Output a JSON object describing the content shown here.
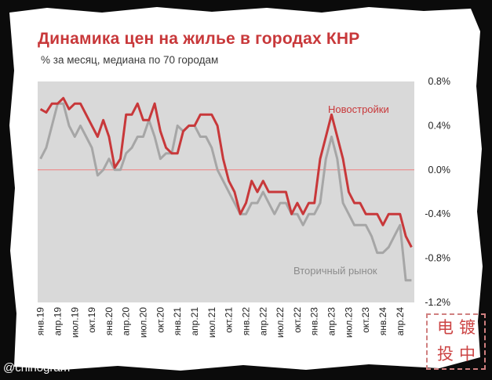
{
  "title": "Динамика цен на жилье в городах КНР",
  "subtitle": "% за месяц, медиана по 70 городам",
  "watermark": "@chinogram",
  "stamp": [
    "电",
    "镀",
    "投",
    "中"
  ],
  "colors": {
    "new": "#c8383a",
    "secondary": "#a6a6a6",
    "zero_line": "#f08080",
    "plot_bg": "#d9d9d9",
    "title": "#c8383a"
  },
  "chart_data": {
    "type": "line",
    "title": "Динамика цен на жилье в городах КНР",
    "subtitle": "% за месяц, медиана по 70 городам",
    "xlabel": "",
    "ylabel": "",
    "ylim": [
      -1.2,
      0.8
    ],
    "yticks": [
      0.8,
      0.4,
      0.0,
      -0.4,
      -0.8,
      -1.2
    ],
    "ytick_labels": [
      "0.8%",
      "0.4%",
      "0.0%",
      "-0.4%",
      "-0.8%",
      "-1.2%"
    ],
    "y_axis_position": "right",
    "grid": false,
    "x_start": "янв.19",
    "x_tick_labels": [
      "янв.19",
      "апр.19",
      "июл.19",
      "окт.19",
      "янв.20",
      "апр.20",
      "июл.20",
      "окт.20",
      "янв.21",
      "апр.21",
      "июл.21",
      "окт.21",
      "янв.22",
      "апр.22",
      "июл.22",
      "окт.22",
      "янв.23",
      "апр.23",
      "июл.23",
      "окт.23",
      "янв.24",
      "апр.24"
    ],
    "x_tick_step": 3,
    "series": [
      {
        "name": "Новостройки",
        "color": "#c8383a",
        "values": [
          0.55,
          0.52,
          0.6,
          0.6,
          0.65,
          0.55,
          0.6,
          0.6,
          0.5,
          0.4,
          0.3,
          0.45,
          0.3,
          0.02,
          0.1,
          0.5,
          0.5,
          0.6,
          0.45,
          0.45,
          0.6,
          0.35,
          0.2,
          0.15,
          0.15,
          0.35,
          0.4,
          0.4,
          0.5,
          0.5,
          0.5,
          0.4,
          0.1,
          -0.1,
          -0.2,
          -0.4,
          -0.3,
          -0.1,
          -0.2,
          -0.1,
          -0.2,
          -0.2,
          -0.2,
          -0.2,
          -0.4,
          -0.3,
          -0.4,
          -0.3,
          -0.3,
          0.1,
          0.3,
          0.5,
          0.3,
          0.1,
          -0.2,
          -0.3,
          -0.3,
          -0.4,
          -0.4,
          -0.4,
          -0.5,
          -0.4,
          -0.4,
          -0.4,
          -0.6,
          -0.7
        ]
      },
      {
        "name": "Вторичный рынок",
        "color": "#a6a6a6",
        "values": [
          0.1,
          0.2,
          0.4,
          0.6,
          0.6,
          0.4,
          0.3,
          0.4,
          0.3,
          0.2,
          -0.05,
          0.0,
          0.1,
          0.0,
          0.0,
          0.15,
          0.2,
          0.3,
          0.3,
          0.45,
          0.3,
          0.1,
          0.15,
          0.15,
          0.4,
          0.35,
          0.4,
          0.4,
          0.3,
          0.3,
          0.2,
          0.0,
          -0.1,
          -0.2,
          -0.3,
          -0.4,
          -0.4,
          -0.3,
          -0.3,
          -0.2,
          -0.3,
          -0.4,
          -0.3,
          -0.3,
          -0.4,
          -0.4,
          -0.5,
          -0.4,
          -0.4,
          -0.3,
          0.1,
          0.3,
          0.1,
          -0.3,
          -0.4,
          -0.5,
          -0.5,
          -0.5,
          -0.6,
          -0.75,
          -0.75,
          -0.7,
          -0.6,
          -0.5,
          -1.0,
          -1.0
        ]
      }
    ],
    "annotations": [
      {
        "text": "Новостройки",
        "series": 0
      },
      {
        "text": "Вторичный рынок",
        "series": 1
      }
    ]
  }
}
